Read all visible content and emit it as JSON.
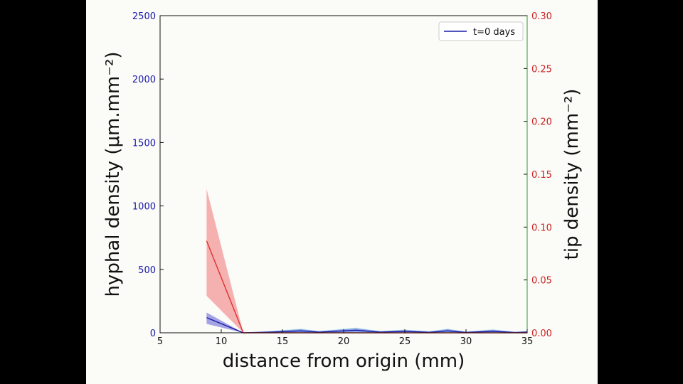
{
  "chart_data": {
    "type": "line",
    "xlabel": "distance from origin (mm)",
    "ylabel_left": "hyphal density (μm.mm⁻²)",
    "ylabel_right": "tip density (mm⁻²)",
    "xlim": [
      5,
      35
    ],
    "ylim_left": [
      0,
      2500
    ],
    "ylim_right": [
      0,
      0.3
    ],
    "x_ticks": [
      "5",
      "10",
      "15",
      "20",
      "25",
      "30",
      "35"
    ],
    "y_left_ticks": [
      "0",
      "500",
      "1000",
      "1500",
      "2000",
      "2500"
    ],
    "y_right_ticks": [
      "0.00",
      "0.05",
      "0.10",
      "0.15",
      "0.20",
      "0.25",
      "0.30"
    ],
    "legend": {
      "position": "top-right",
      "entries": [
        "t=0 days"
      ]
    },
    "colors": {
      "hyphal": "#1a1aa8",
      "tip": "#e03030",
      "tip_band": "#f28080",
      "hyphal_band": "#6a6ad8",
      "cyan_band": "#7fe0e8"
    },
    "series": [
      {
        "axis": "left",
        "x": [
          8.8,
          11.8,
          14,
          16.5,
          18,
          21,
          23,
          25,
          27,
          28.5,
          30,
          32.2,
          34,
          35
        ],
        "mean": [
          120,
          0,
          5,
          15,
          5,
          20,
          5,
          12,
          4,
          15,
          3,
          12,
          2,
          5
        ],
        "lower": [
          70,
          0,
          0,
          5,
          0,
          8,
          0,
          4,
          0,
          6,
          0,
          4,
          0,
          0
        ],
        "upper": [
          160,
          0,
          12,
          28,
          12,
          35,
          12,
          22,
          10,
          28,
          8,
          24,
          6,
          12
        ]
      },
      {
        "axis": "right",
        "x": [
          8.8,
          11.8,
          15,
          20,
          25,
          30,
          35
        ],
        "mean": [
          0.087,
          0,
          0,
          0,
          0,
          0,
          0
        ],
        "lower": [
          0.035,
          0,
          0,
          0,
          0,
          0,
          0
        ],
        "upper": [
          0.136,
          0,
          0,
          0,
          0,
          0,
          0
        ]
      }
    ]
  }
}
